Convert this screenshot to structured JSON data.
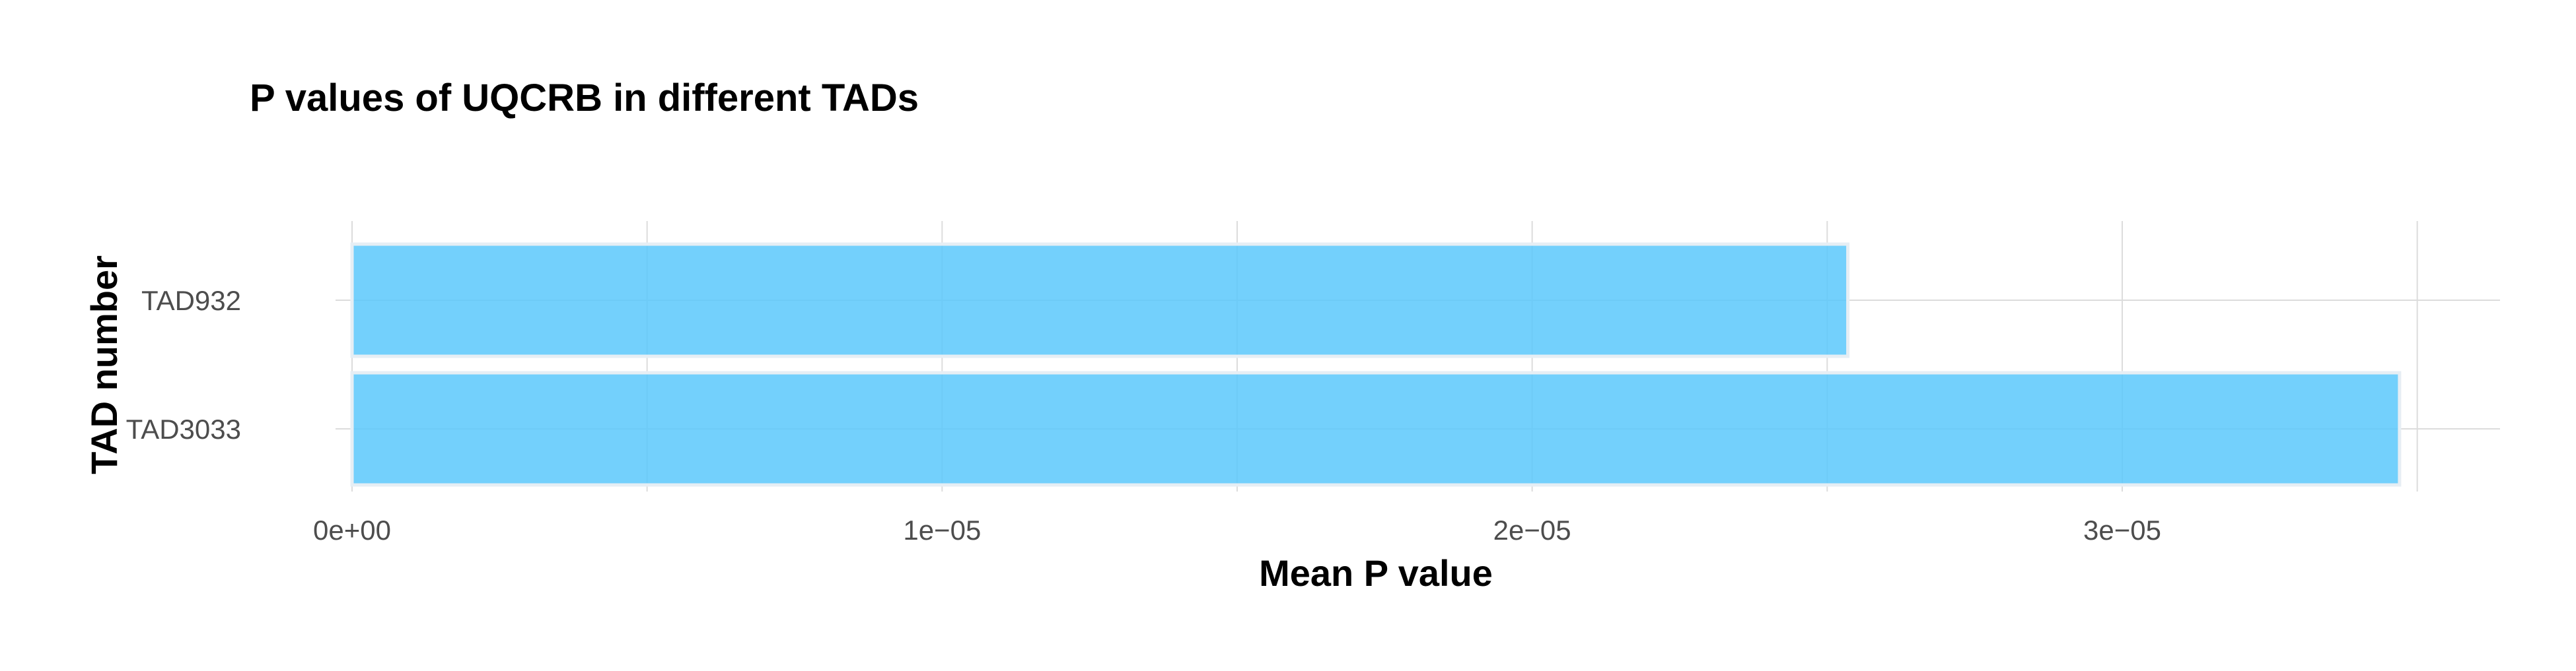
{
  "chart_data": {
    "type": "bar",
    "orientation": "horizontal",
    "title": "P values of UQCRB in different TADs",
    "xlabel": "Mean P value",
    "ylabel": "TAD number",
    "categories": [
      "TAD932",
      "TAD3033"
    ],
    "values": [
      2.535e-05,
      3.47e-05
    ],
    "xlim": [
      0,
      3.5e-05
    ],
    "x_ticks": [
      0,
      1e-05,
      2e-05,
      3e-05
    ],
    "x_tick_labels": [
      "0e+00",
      "1e−05",
      "2e−05",
      "3e−05"
    ],
    "grid": true,
    "legend": "none",
    "bar_color": "#5bc8fb",
    "bar_outline_color": "#e6eef4",
    "grid_color": "#dcdcdc"
  }
}
